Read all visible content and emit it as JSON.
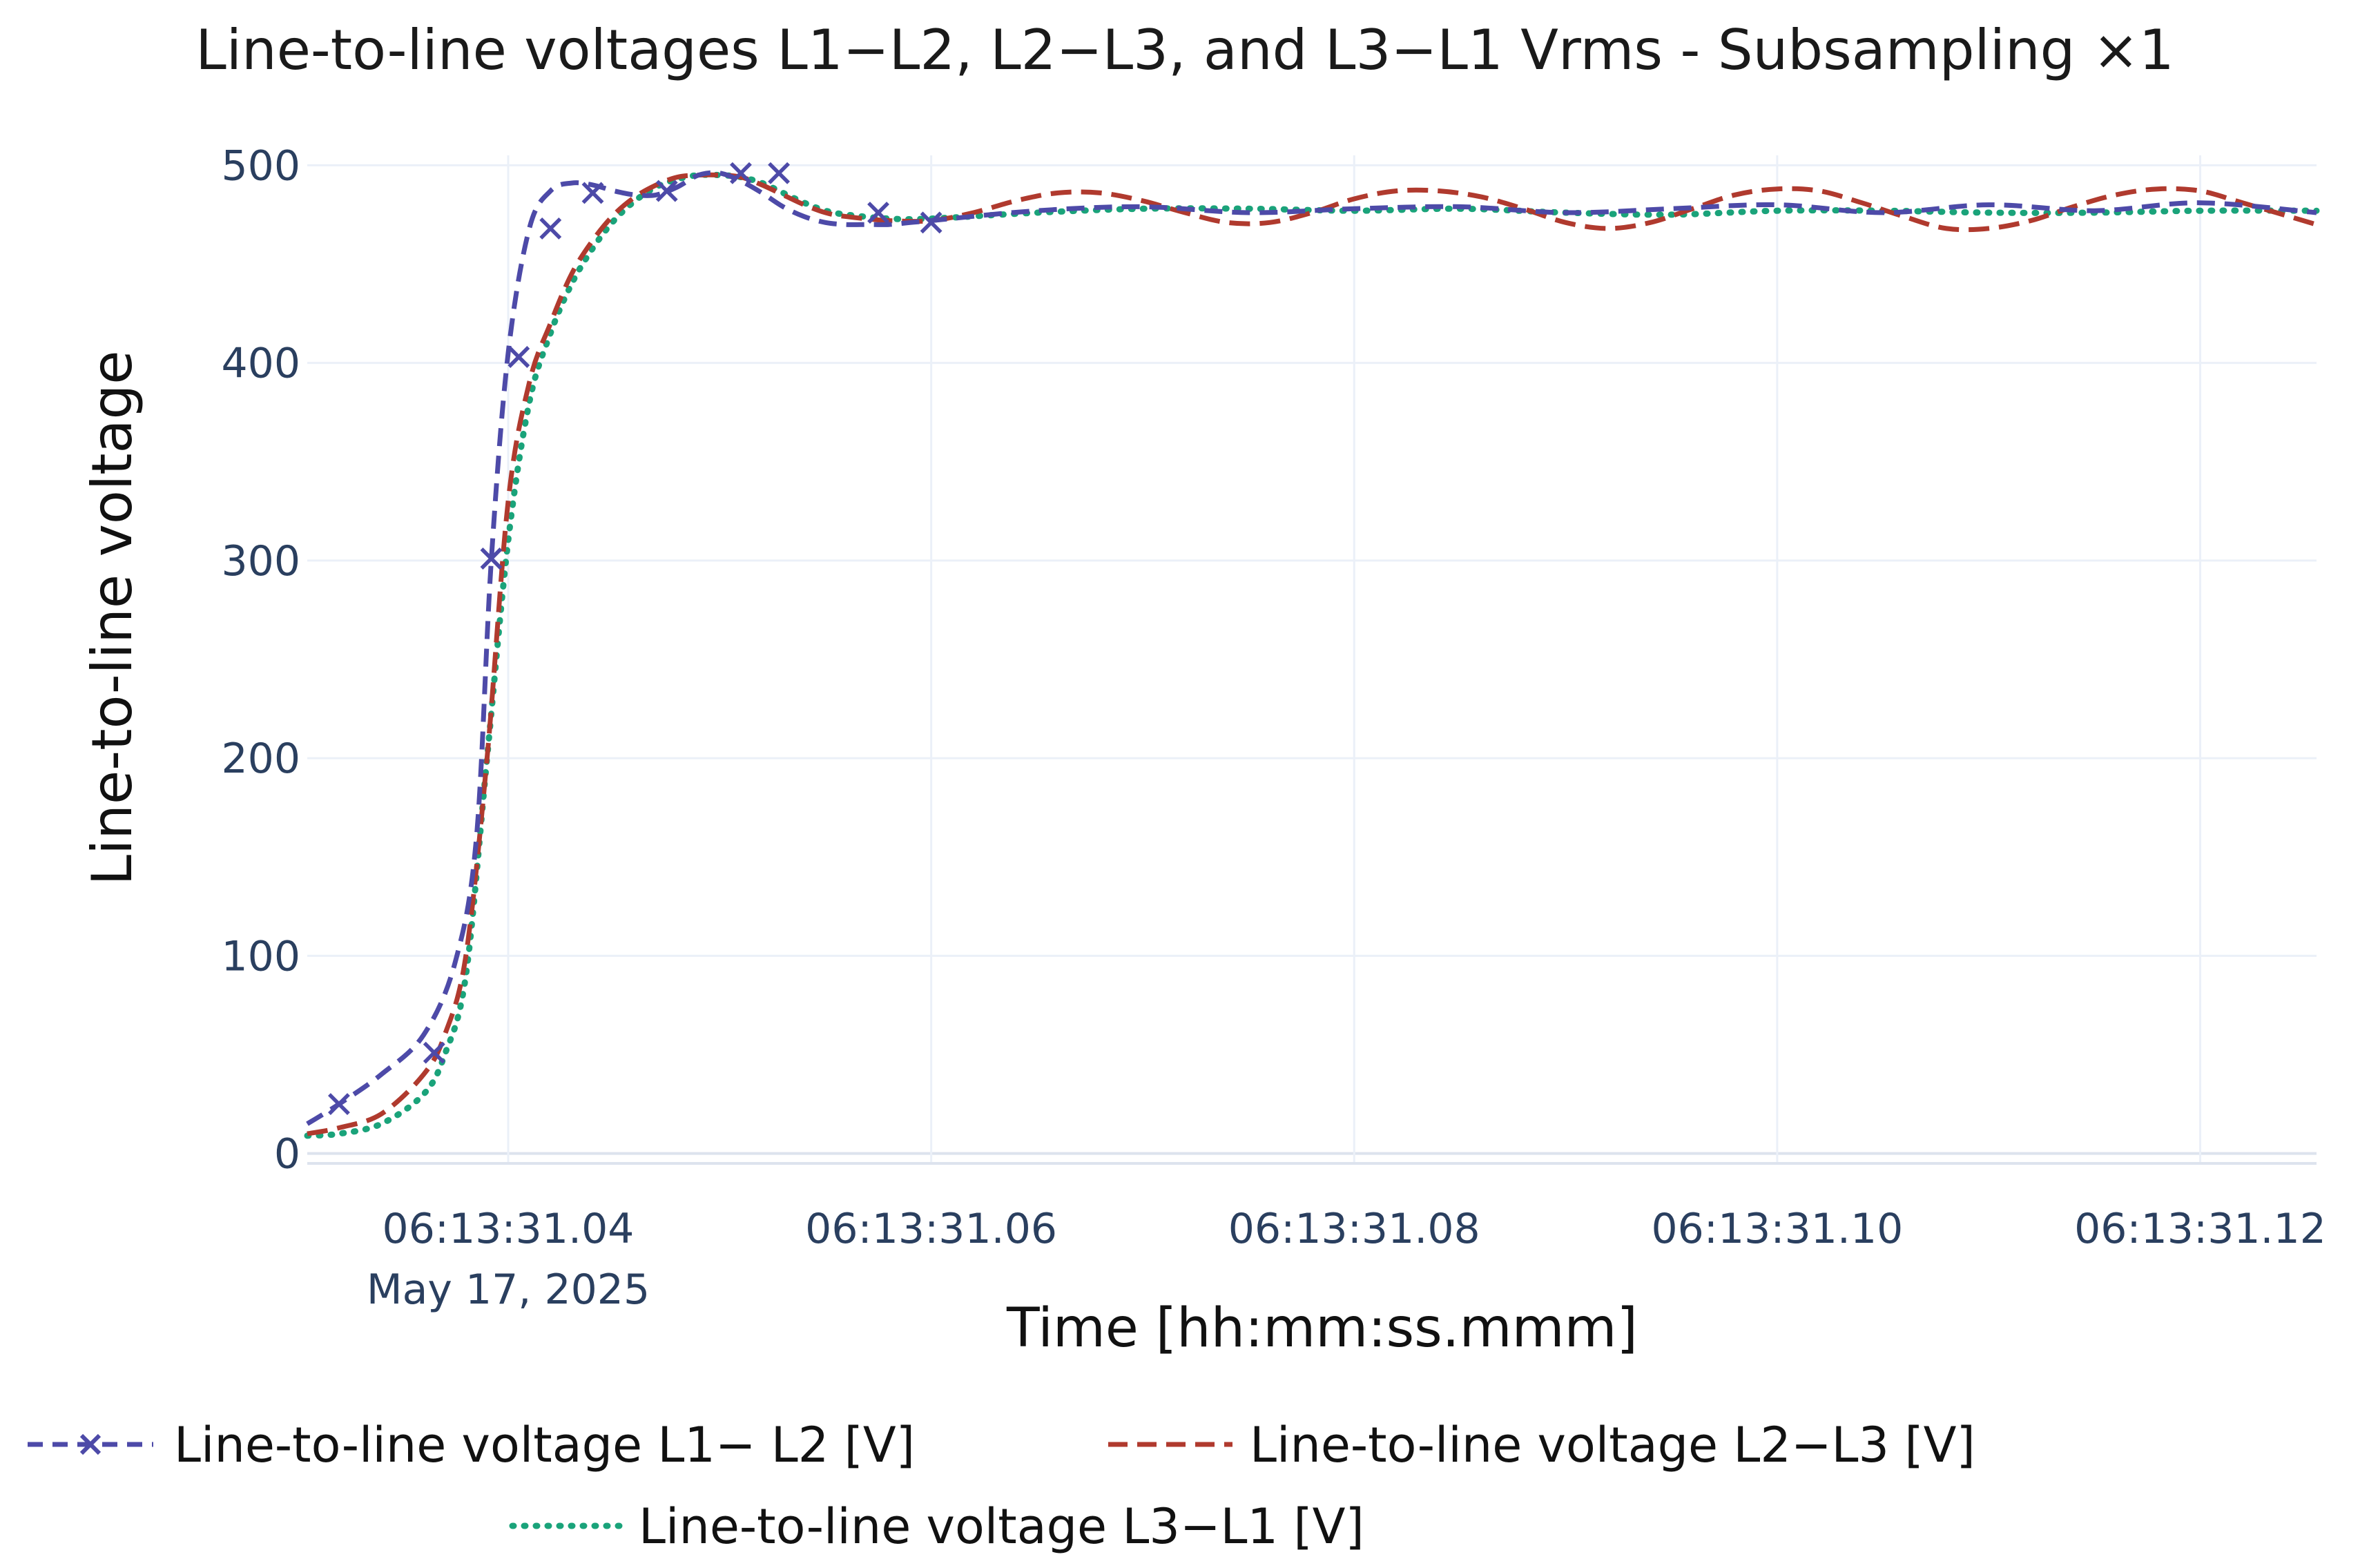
{
  "chart_data": {
    "type": "line",
    "title": "Line-to-line voltages L1−L2, L2−L3, and L3−L1 Vrms  -   Subsampling ×1",
    "xlabel": "Time [hh:mm:ss.mmm]",
    "ylabel": "Line-to-line voltage",
    "x_unit": "ms after 06:13:31.000",
    "xlim": [
      30.5,
      125.5
    ],
    "ylim": [
      -5,
      505
    ],
    "grid": true,
    "legend_position": "bottom",
    "x_ticks": [
      {
        "value": 40,
        "label": "06:13:31.04"
      },
      {
        "value": 60,
        "label": "06:13:31.06"
      },
      {
        "value": 80,
        "label": "06:13:31.08"
      },
      {
        "value": 100,
        "label": "06:13:31.10"
      },
      {
        "value": 120,
        "label": "06:13:31.12"
      }
    ],
    "x_date_label": "May 17, 2025",
    "y_ticks": [
      0,
      100,
      200,
      300,
      400,
      500
    ],
    "series": [
      {
        "name": "Line-to-line voltage L1− L2 [V]",
        "color": "#4d4aa8",
        "dash": "dash",
        "marker": "x",
        "x": [
          30.5,
          32,
          34,
          36,
          37.5,
          38.5,
          39.2,
          40,
          41,
          42,
          43,
          44,
          45,
          46,
          47,
          48,
          49,
          50,
          51,
          52,
          53,
          54,
          55,
          56,
          57,
          58,
          59,
          60,
          65,
          70,
          75,
          80,
          85,
          90,
          95,
          100,
          105,
          110,
          115,
          120,
          125.5
        ],
        "y": [
          15,
          25,
          40,
          60,
          97,
          160,
          300,
          405,
          468,
          487,
          491,
          490,
          487,
          485,
          485,
          489,
          495,
          496,
          492,
          486,
          479,
          474,
          471,
          470,
          470,
          470,
          471,
          472,
          477,
          479,
          476,
          478,
          479,
          476,
          478,
          480,
          476,
          480,
          477,
          481,
          476
        ],
        "markers_x": [
          32,
          36.5,
          39.2,
          40.5,
          42,
          44,
          47.5,
          51,
          52.8,
          57.5,
          60
        ],
        "markers_y": [
          25,
          51,
          301,
          403,
          468,
          486,
          487,
          496,
          496,
          476,
          471
        ]
      },
      {
        "name": "Line-to-line voltage L2−L3 [V]",
        "color": "#b03a2e",
        "dash": "dash",
        "x": [
          30.5,
          32,
          34,
          36,
          37,
          38,
          39,
          40,
          41,
          42,
          43,
          44,
          45,
          46,
          47,
          48,
          49,
          50,
          51,
          52,
          53,
          54,
          55,
          56,
          58,
          60,
          62,
          64,
          66,
          68,
          70,
          72,
          74,
          76,
          78,
          80,
          82,
          84,
          86,
          88,
          90,
          92,
          94,
          96,
          98,
          100,
          102,
          104,
          106,
          108,
          110,
          112,
          114,
          116,
          118,
          120,
          122,
          125.5
        ],
        "y": [
          10,
          13,
          20,
          40,
          60,
          100,
          200,
          330,
          390,
          420,
          445,
          462,
          475,
          484,
          490,
          494,
          495,
          495,
          494,
          490,
          485,
          480,
          476,
          474,
          472,
          472,
          476,
          482,
          486,
          486,
          482,
          476,
          471,
          471,
          476,
          483,
          487,
          487,
          484,
          478,
          471,
          468,
          471,
          478,
          485,
          488,
          487,
          481,
          474,
          468,
          468,
          472,
          479,
          485,
          488,
          487,
          481,
          470
        ]
      },
      {
        "name": "Line-to-line voltage L3−L1 [V]",
        "color": "#1aa37a",
        "dash": "dot",
        "x": [
          30.5,
          32,
          34,
          36,
          37,
          38,
          39,
          40,
          41,
          42,
          43,
          44,
          45,
          46,
          47,
          48,
          49,
          50,
          51,
          52,
          53,
          54,
          55,
          56,
          58,
          60,
          65,
          70,
          75,
          80,
          85,
          90,
          95,
          100,
          105,
          110,
          115,
          120,
          125.5
        ],
        "y": [
          9,
          10,
          15,
          30,
          50,
          90,
          200,
          310,
          380,
          415,
          440,
          458,
          472,
          482,
          489,
          493,
          495,
          495,
          494,
          491,
          486,
          481,
          477,
          475,
          473,
          473,
          476,
          478,
          478,
          477,
          478,
          476,
          475,
          477,
          477,
          476,
          476,
          477,
          477
        ]
      }
    ]
  }
}
